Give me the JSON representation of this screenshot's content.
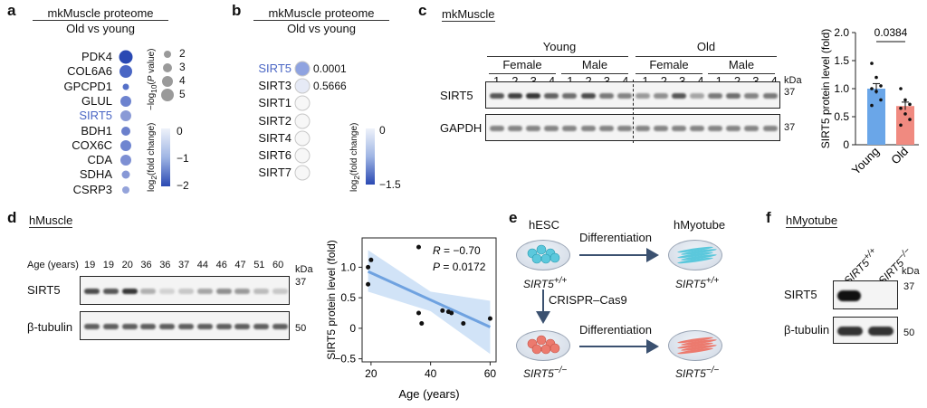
{
  "panel_a": {
    "letter": "a",
    "title": "mkMuscle proteome",
    "subtitle": "Old vs young",
    "genes": [
      {
        "name": "PDK4",
        "highlight": false
      },
      {
        "name": "COL6A6",
        "highlight": false
      },
      {
        "name": "GPCPD1",
        "highlight": false
      },
      {
        "name": "GLUL",
        "highlight": false
      },
      {
        "name": "SIRT5",
        "highlight": true
      },
      {
        "name": "BDH1",
        "highlight": false
      },
      {
        "name": "COX6C",
        "highlight": false
      },
      {
        "name": "CDA",
        "highlight": false
      },
      {
        "name": "SDHA",
        "highlight": false
      },
      {
        "name": "CSRP3",
        "highlight": false
      }
    ],
    "size_legend_title": "−log10(P value)",
    "size_legend": [
      "2",
      "3",
      "4",
      "5"
    ],
    "color_legend_title": "log2(fold change)",
    "color_legend_ticks": [
      "0",
      "−1",
      "−2"
    ]
  },
  "panel_b": {
    "letter": "b",
    "title": "mkMuscle proteome",
    "subtitle": "Old vs young",
    "genes": [
      {
        "name": "SIRT5",
        "value": "0.0001",
        "highlight": true
      },
      {
        "name": "SIRT3",
        "value": "0.5666",
        "highlight": false
      },
      {
        "name": "SIRT1",
        "value": "",
        "highlight": false
      },
      {
        "name": "SIRT2",
        "value": "",
        "highlight": false
      },
      {
        "name": "SIRT4",
        "value": "",
        "highlight": false
      },
      {
        "name": "SIRT6",
        "value": "",
        "highlight": false
      },
      {
        "name": "SIRT7",
        "value": "",
        "highlight": false
      }
    ],
    "color_legend_title": "log2(fold change)",
    "color_legend_ticks": [
      "0",
      "−1.5"
    ]
  },
  "panel_c": {
    "letter": "c",
    "title": "mkMuscle",
    "group_young": "Young",
    "group_old": "Old",
    "female": "Female",
    "male": "Male",
    "lanes": [
      "1",
      "2",
      "3",
      "4",
      "1",
      "2",
      "3",
      "4",
      "1",
      "2",
      "3",
      "4",
      "1",
      "2",
      "3",
      "4"
    ],
    "kda": "kDa",
    "rows": [
      {
        "label": "SIRT5",
        "kda": "37"
      },
      {
        "label": "GAPDH",
        "kda": "37"
      }
    ]
  },
  "panel_d": {
    "letter": "d",
    "title": "hMuscle",
    "age_label": "Age (years)",
    "ages": [
      "19",
      "19",
      "20",
      "36",
      "36",
      "37",
      "44",
      "46",
      "47",
      "51",
      "60"
    ],
    "kda": "kDa",
    "rows": [
      {
        "label": "SIRT5",
        "kda": "37"
      },
      {
        "label": "β-tubulin",
        "kda": "50"
      }
    ]
  },
  "panel_e": {
    "letter": "e",
    "hesc": "hESC",
    "hmyotube": "hMyotube",
    "differentiation_top": "Differentiation",
    "differentiation_bottom": "Differentiation",
    "crispr": "CRISPR–Cas9",
    "genotype_wt_left": "SIRT5+/+",
    "genotype_wt_right": "SIRT5+/+",
    "genotype_ko_left": "SIRT5−/−",
    "genotype_ko_right": "SIRT5−/−",
    "colors": {
      "wt": "#5bc8dc",
      "ko": "#ec7a6e"
    }
  },
  "panel_f": {
    "letter": "f",
    "title": "hMyotube",
    "lanes": [
      "SIRT5+/+",
      "SIRT5−/−"
    ],
    "kda": "kDa",
    "rows": [
      {
        "label": "SIRT5",
        "kda": "37"
      },
      {
        "label": "β-tubulin",
        "kda": "50"
      }
    ]
  },
  "chart_data": [
    {
      "type": "bar",
      "panel": "c",
      "categories": [
        "Young",
        "Old"
      ],
      "values": [
        1.0,
        0.69
      ],
      "errors": [
        0.09,
        0.07
      ],
      "points": [
        [
          1.45,
          1.2,
          1.05,
          1.0,
          0.95,
          0.8,
          0.7
        ],
        [
          1.0,
          0.8,
          0.72,
          0.65,
          0.55,
          0.45,
          0.35
        ]
      ],
      "ylabel": "SIRT5 protein level (fold)",
      "ylim": [
        0,
        2.0
      ],
      "yticks": [
        "0",
        "0.5",
        "1.0",
        "1.5",
        "2.0"
      ],
      "p_value": "0.0384",
      "colors": [
        "#6aa6e8",
        "#f08a80"
      ]
    },
    {
      "type": "scatter",
      "panel": "d",
      "x": [
        19,
        19,
        20,
        36,
        36,
        37,
        44,
        46,
        47,
        51,
        60
      ],
      "y": [
        0.72,
        1.0,
        1.12,
        1.33,
        0.25,
        0.08,
        0.29,
        0.27,
        0.25,
        0.08,
        0.16
      ],
      "fit": [
        [
          19,
          0.93
        ],
        [
          60,
          0.02
        ]
      ],
      "xlabel": "Age (years)",
      "ylabel": "SIRT5 protein level (fold)",
      "xlim": [
        17,
        62
      ],
      "ylim": [
        -0.55,
        1.48
      ],
      "xticks": [
        "20",
        "40",
        "60"
      ],
      "yticks": [
        "−0.5",
        "0",
        "0.5",
        "1.0"
      ],
      "stat_r_label": "R",
      "stat_r_value": "= −0.70",
      "stat_p_label": "P",
      "stat_p_value": "= 0.0172",
      "colors": {
        "fit": "#6fa2e0",
        "band": "#c5dcf5"
      }
    }
  ]
}
